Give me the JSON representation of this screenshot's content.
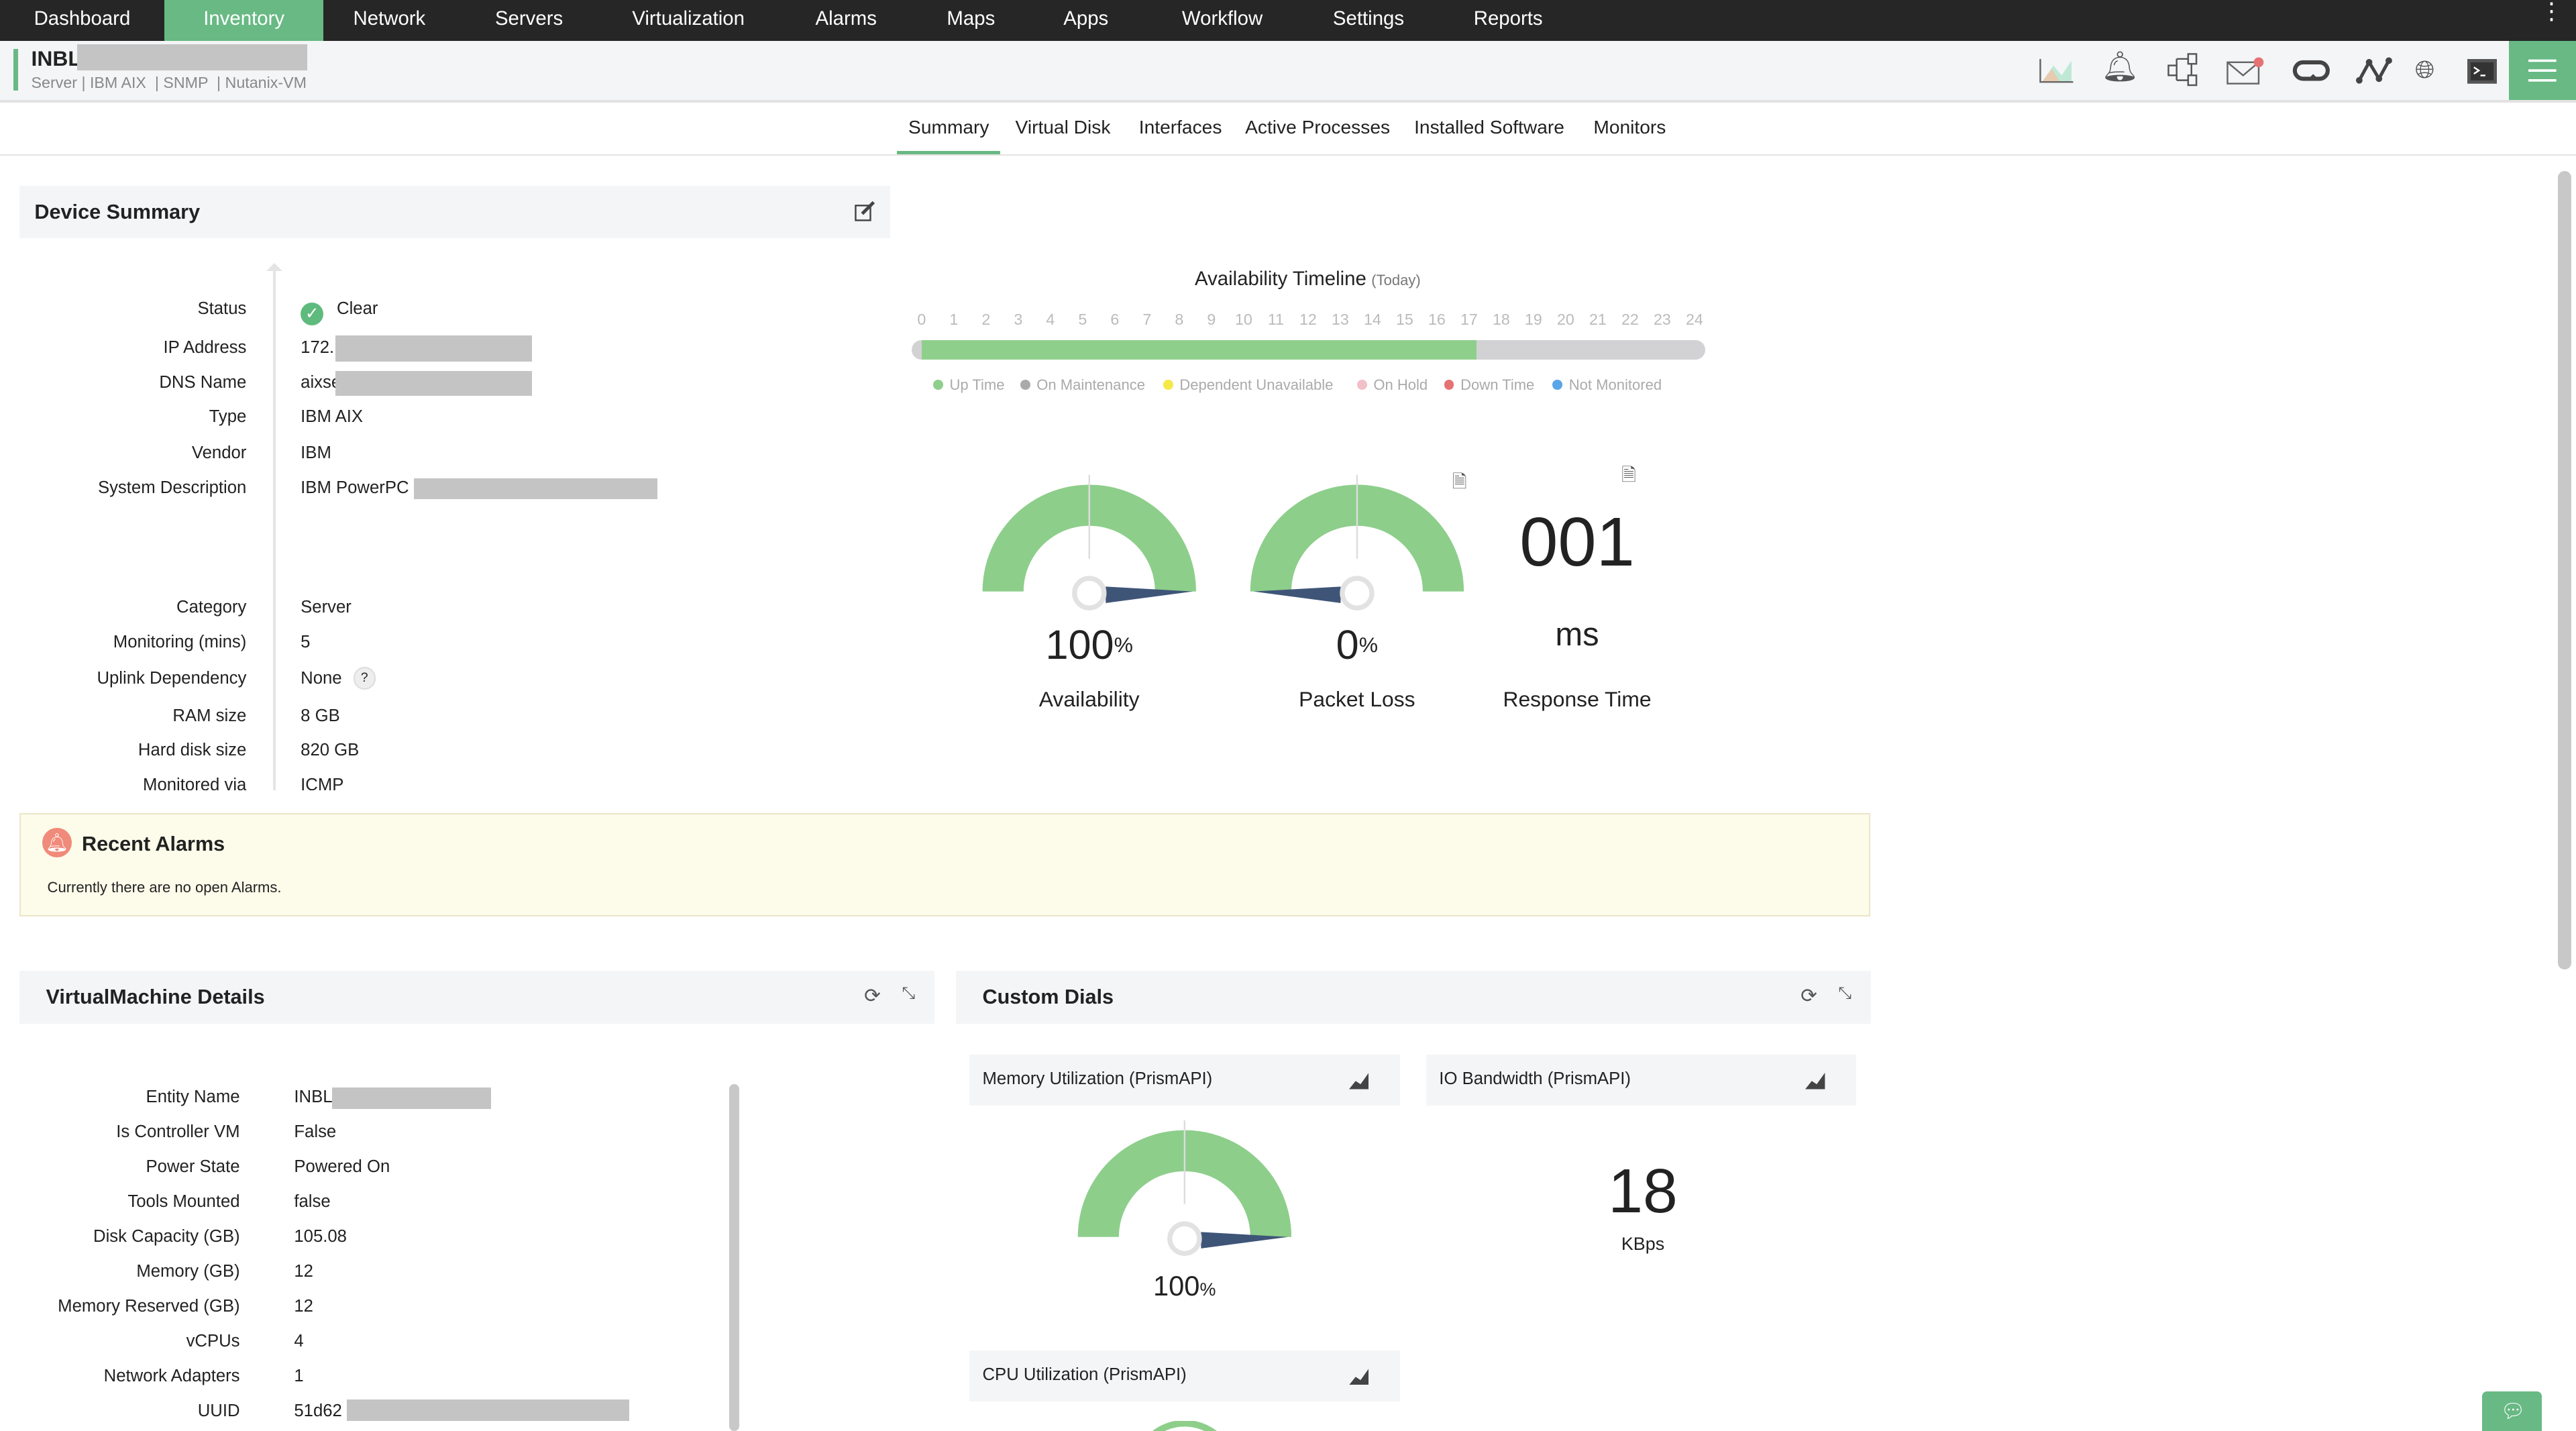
{
  "nav": {
    "items": [
      "Dashboard",
      "Inventory",
      "Network",
      "Servers",
      "Virtualization",
      "Alarms",
      "Maps",
      "Apps",
      "Workflow",
      "Settings",
      "Reports"
    ],
    "active": "Inventory"
  },
  "header": {
    "title": "INBL",
    "subtitle": "Server | IBM AIX  | SNMP  | Nutanix-VM"
  },
  "tabs": [
    "Summary",
    "Virtual Disk",
    "Interfaces",
    "Active Processes",
    "Installed Software",
    "Monitors"
  ],
  "active_tab": "Summary",
  "device_summary": {
    "title": "Device Summary",
    "rows": [
      {
        "label": "Status",
        "value": "Clear"
      },
      {
        "label": "IP Address",
        "value": "172."
      },
      {
        "label": "DNS Name",
        "value": "aixse"
      },
      {
        "label": "Type",
        "value": "IBM AIX"
      },
      {
        "label": "Vendor",
        "value": "IBM"
      },
      {
        "label": "System Description",
        "value": "IBM PowerPC"
      },
      {
        "label": "Category",
        "value": "Server"
      },
      {
        "label": "Monitoring (mins)",
        "value": "5"
      },
      {
        "label": "Uplink Dependency",
        "value": "None"
      },
      {
        "label": "RAM size",
        "value": "8 GB"
      },
      {
        "label": "Hard disk size",
        "value": "820 GB"
      },
      {
        "label": "Monitored via",
        "value": "ICMP"
      }
    ]
  },
  "timeline": {
    "title": "Availability Timeline",
    "subtitle": "(Today)",
    "hours": [
      "0",
      "1",
      "2",
      "3",
      "4",
      "5",
      "6",
      "7",
      "8",
      "9",
      "10",
      "11",
      "12",
      "13",
      "14",
      "15",
      "16",
      "17",
      "18",
      "19",
      "20",
      "21",
      "22",
      "23",
      "24"
    ],
    "uptime_until_hour": 17,
    "legend": [
      {
        "label": "Up Time",
        "color": "#8fcf8c"
      },
      {
        "label": "On Maintenance",
        "color": "#aaaaaa"
      },
      {
        "label": "Dependent Unavailable",
        "color": "#f5e94a"
      },
      {
        "label": "On Hold",
        "color": "#f2c0c8"
      },
      {
        "label": "Down Time",
        "color": "#e57373"
      },
      {
        "label": "Not Monitored",
        "color": "#5aa5e8"
      }
    ]
  },
  "gauges": [
    {
      "value": "100",
      "unit": "%",
      "label": "Availability",
      "percent": 100
    },
    {
      "value": "0",
      "unit": "%",
      "label": "Packet Loss",
      "percent": 0
    }
  ],
  "response": {
    "value": "001",
    "unit": "ms",
    "label": "Response Time"
  },
  "alarms": {
    "title": "Recent Alarms",
    "message": "Currently there are no open Alarms."
  },
  "vm": {
    "title": "VirtualMachine Details",
    "rows": [
      {
        "label": "Entity Name",
        "value": "INBL"
      },
      {
        "label": "Is Controller VM",
        "value": "False"
      },
      {
        "label": "Power State",
        "value": "Powered On"
      },
      {
        "label": "Tools Mounted",
        "value": "false"
      },
      {
        "label": "Disk Capacity (GB)",
        "value": "105.08"
      },
      {
        "label": "Memory (GB)",
        "value": "12"
      },
      {
        "label": "Memory Reserved (GB)",
        "value": "12"
      },
      {
        "label": "vCPUs",
        "value": "4"
      },
      {
        "label": "Network Adapters",
        "value": "1"
      },
      {
        "label": "UUID",
        "value": "51d62"
      }
    ]
  },
  "dials": {
    "title": "Custom Dials",
    "cards": [
      {
        "title": "Memory Utilization (PrismAPI)",
        "value": "100",
        "unit": "%",
        "percent": 100
      },
      {
        "title": "IO Bandwidth (PrismAPI)",
        "value": "18",
        "unit": "KBps"
      },
      {
        "title": "CPU Utilization (PrismAPI)"
      }
    ]
  },
  "colors": {
    "accent": "#68b984",
    "gauge": "#8dce8b",
    "needle": "#3f5578",
    "nav_bg": "#262626"
  }
}
